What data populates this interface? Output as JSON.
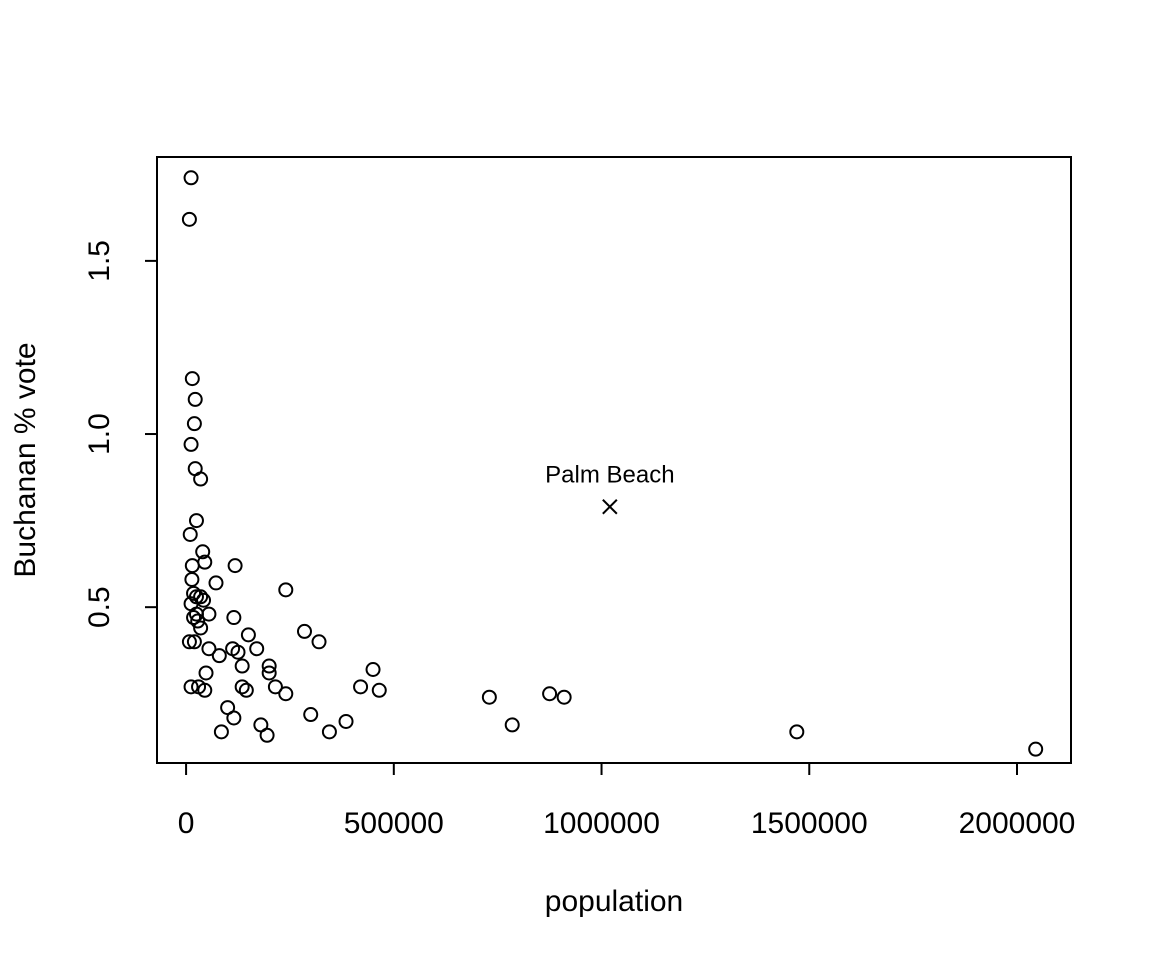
{
  "chart_data": {
    "type": "scatter",
    "title": "",
    "xlabel": "population",
    "ylabel": "Buchanan % vote",
    "xlim": [
      -70000,
      2130000
    ],
    "ylim": [
      0.05,
      1.8
    ],
    "x_ticks": [
      0,
      500000,
      1000000,
      1500000,
      2000000
    ],
    "x_tick_labels": [
      "0",
      "500000",
      "1000000",
      "1500000",
      "2000000"
    ],
    "y_ticks": [
      0.5,
      1.0,
      1.5
    ],
    "y_tick_labels": [
      "0.5",
      "1.0",
      "1.5"
    ],
    "grid": false,
    "legend": "none",
    "series": [
      {
        "marker": "open-circle",
        "points": [
          [
            12000,
            1.74
          ],
          [
            8000,
            1.62
          ],
          [
            15000,
            1.16
          ],
          [
            22000,
            1.1
          ],
          [
            20000,
            1.03
          ],
          [
            12000,
            0.97
          ],
          [
            22000,
            0.9
          ],
          [
            35000,
            0.87
          ],
          [
            25000,
            0.75
          ],
          [
            10000,
            0.71
          ],
          [
            40000,
            0.66
          ],
          [
            45000,
            0.63
          ],
          [
            15000,
            0.62
          ],
          [
            118000,
            0.62
          ],
          [
            14000,
            0.58
          ],
          [
            72000,
            0.57
          ],
          [
            240000,
            0.55
          ],
          [
            18000,
            0.54
          ],
          [
            25000,
            0.53
          ],
          [
            35000,
            0.53
          ],
          [
            42000,
            0.52
          ],
          [
            12000,
            0.51
          ],
          [
            25000,
            0.48
          ],
          [
            55000,
            0.48
          ],
          [
            18000,
            0.47
          ],
          [
            115000,
            0.47
          ],
          [
            28000,
            0.46
          ],
          [
            35000,
            0.44
          ],
          [
            150000,
            0.42
          ],
          [
            285000,
            0.43
          ],
          [
            320000,
            0.4
          ],
          [
            8000,
            0.4
          ],
          [
            20000,
            0.4
          ],
          [
            55000,
            0.38
          ],
          [
            112000,
            0.38
          ],
          [
            170000,
            0.38
          ],
          [
            125000,
            0.37
          ],
          [
            80000,
            0.36
          ],
          [
            135000,
            0.33
          ],
          [
            200000,
            0.33
          ],
          [
            450000,
            0.32
          ],
          [
            48000,
            0.31
          ],
          [
            200000,
            0.31
          ],
          [
            12000,
            0.27
          ],
          [
            30000,
            0.27
          ],
          [
            135000,
            0.27
          ],
          [
            215000,
            0.27
          ],
          [
            420000,
            0.27
          ],
          [
            45000,
            0.26
          ],
          [
            145000,
            0.26
          ],
          [
            465000,
            0.26
          ],
          [
            240000,
            0.25
          ],
          [
            875000,
            0.25
          ],
          [
            730000,
            0.24
          ],
          [
            910000,
            0.24
          ],
          [
            100000,
            0.21
          ],
          [
            300000,
            0.19
          ],
          [
            115000,
            0.18
          ],
          [
            385000,
            0.17
          ],
          [
            180000,
            0.16
          ],
          [
            785000,
            0.16
          ],
          [
            85000,
            0.14
          ],
          [
            345000,
            0.14
          ],
          [
            1470000,
            0.14
          ],
          [
            195000,
            0.13
          ],
          [
            2045000,
            0.09
          ]
        ]
      },
      {
        "name": "Palm Beach",
        "marker": "x",
        "points": [
          [
            1020000,
            0.79
          ]
        ]
      }
    ],
    "annotations": [
      {
        "text": "Palm Beach",
        "x": 1020000,
        "y": 0.79
      }
    ]
  }
}
